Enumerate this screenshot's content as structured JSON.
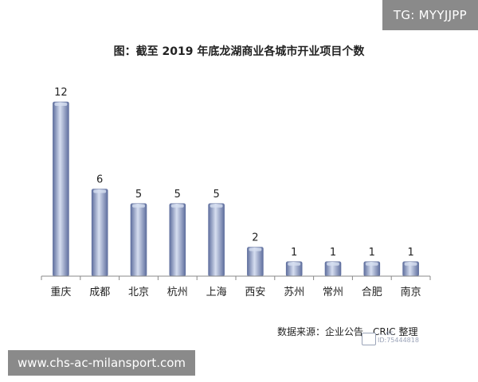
{
  "badges": {
    "telegram": "TG: MYYJJPP",
    "site": "www.chs-ac-milansport.com"
  },
  "source": "数据来源：企业公告，CRIC 整理",
  "watermark": {
    "line1": "… ec",
    "line2": "ID:75444818"
  },
  "colors": {
    "bar_light": "#d6def0",
    "bar_mid": "#9aaad0",
    "bar_dark": "#5f6f9e",
    "axis": "#888888"
  },
  "chart_data": {
    "type": "bar",
    "title": "图：截至 2019 年底龙湖商业各城市开业项目个数",
    "xlabel": "",
    "ylabel": "",
    "categories": [
      "重庆",
      "成都",
      "北京",
      "杭州",
      "上海",
      "西安",
      "苏州",
      "常州",
      "合肥",
      "南京"
    ],
    "values": [
      12,
      6,
      5,
      5,
      5,
      2,
      1,
      1,
      1,
      1
    ],
    "ylim": [
      0,
      12
    ],
    "grid": false,
    "legend": "none",
    "data_labels": true
  }
}
